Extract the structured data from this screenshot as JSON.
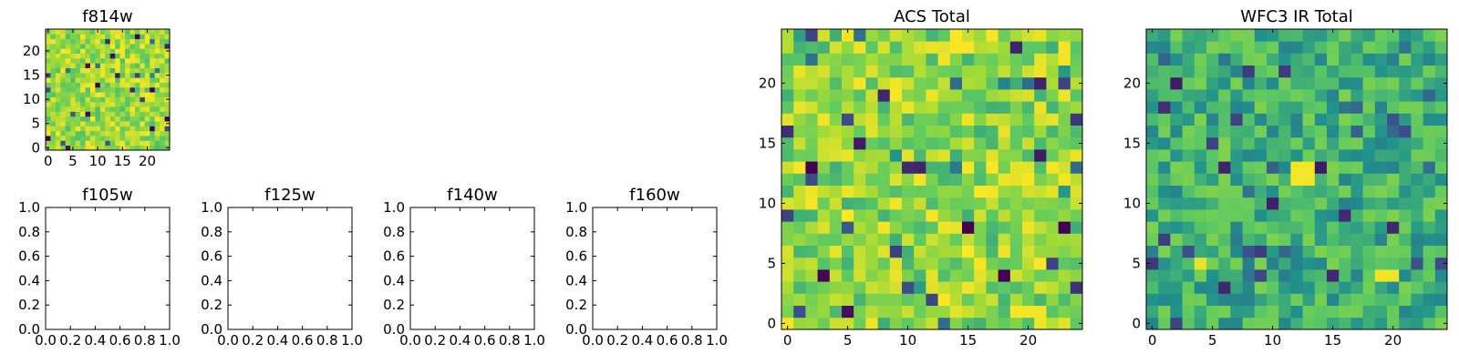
{
  "figure": {
    "background": "#ffffff"
  },
  "chart_data": [
    {
      "id": "f814w",
      "type": "heatmap",
      "title": "f814w",
      "xlim": [
        -0.5,
        24.5
      ],
      "ylim": [
        -0.5,
        24.5
      ],
      "xticks": [
        0,
        5,
        10,
        15,
        20
      ],
      "yticks": [
        0,
        5,
        10,
        15,
        20
      ],
      "grid_size": [
        25,
        25
      ],
      "colormap": [
        "#440154",
        "#3b528b",
        "#21918c",
        "#5ec962",
        "#a0da39",
        "#fde725"
      ],
      "mean_level": 0.82,
      "values": []
    },
    {
      "id": "f105w",
      "type": "empty",
      "title": "f105w",
      "xlim": [
        0,
        1
      ],
      "ylim": [
        0,
        1
      ],
      "xticks": [
        "0.0",
        "0.2",
        "0.4",
        "0.6",
        "0.8",
        "1.0"
      ],
      "yticks": [
        "0.0",
        "0.2",
        "0.4",
        "0.6",
        "0.8",
        "1.0"
      ]
    },
    {
      "id": "f125w",
      "type": "empty",
      "title": "f125w",
      "xlim": [
        0,
        1
      ],
      "ylim": [
        0,
        1
      ],
      "xticks": [
        "0.0",
        "0.2",
        "0.4",
        "0.6",
        "0.8",
        "1.0"
      ],
      "yticks": [
        "0.0",
        "0.2",
        "0.4",
        "0.6",
        "0.8",
        "1.0"
      ]
    },
    {
      "id": "f140w",
      "type": "empty",
      "title": "f140w",
      "xlim": [
        0,
        1
      ],
      "ylim": [
        0,
        1
      ],
      "xticks": [
        "0.0",
        "0.2",
        "0.4",
        "0.6",
        "0.8",
        "1.0"
      ],
      "yticks": [
        "0.0",
        "0.2",
        "0.4",
        "0.6",
        "0.8",
        "1.0"
      ]
    },
    {
      "id": "f160w",
      "type": "empty",
      "title": "f160w",
      "xlim": [
        0,
        1
      ],
      "ylim": [
        0,
        1
      ],
      "xticks": [
        "0.0",
        "0.2",
        "0.4",
        "0.6",
        "0.8",
        "1.0"
      ],
      "yticks": [
        "0.0",
        "0.2",
        "0.4",
        "0.6",
        "0.8",
        "1.0"
      ]
    },
    {
      "id": "acs_total",
      "type": "heatmap",
      "title": "ACS Total",
      "xlim": [
        -0.5,
        24.5
      ],
      "ylim": [
        -0.5,
        24.5
      ],
      "xticks": [
        0,
        5,
        10,
        15,
        20
      ],
      "yticks": [
        0,
        5,
        10,
        15,
        20
      ],
      "grid_size": [
        25,
        25
      ],
      "colormap": [
        "#440154",
        "#3b528b",
        "#21918c",
        "#5ec962",
        "#a0da39",
        "#fde725"
      ],
      "mean_level": 0.8,
      "values": []
    },
    {
      "id": "wfc3_ir_total",
      "type": "heatmap",
      "title": "WFC3 IR Total",
      "xlim": [
        -0.5,
        24.5
      ],
      "ylim": [
        -0.5,
        24.5
      ],
      "xticks": [
        0,
        5,
        10,
        15,
        20
      ],
      "yticks": [
        0,
        5,
        10,
        15,
        20
      ],
      "grid_size": [
        25,
        25
      ],
      "colormap": [
        "#440154",
        "#3b528b",
        "#21918c",
        "#5ec962",
        "#a0da39",
        "#fde725"
      ],
      "mean_level": 0.5,
      "values": []
    }
  ]
}
